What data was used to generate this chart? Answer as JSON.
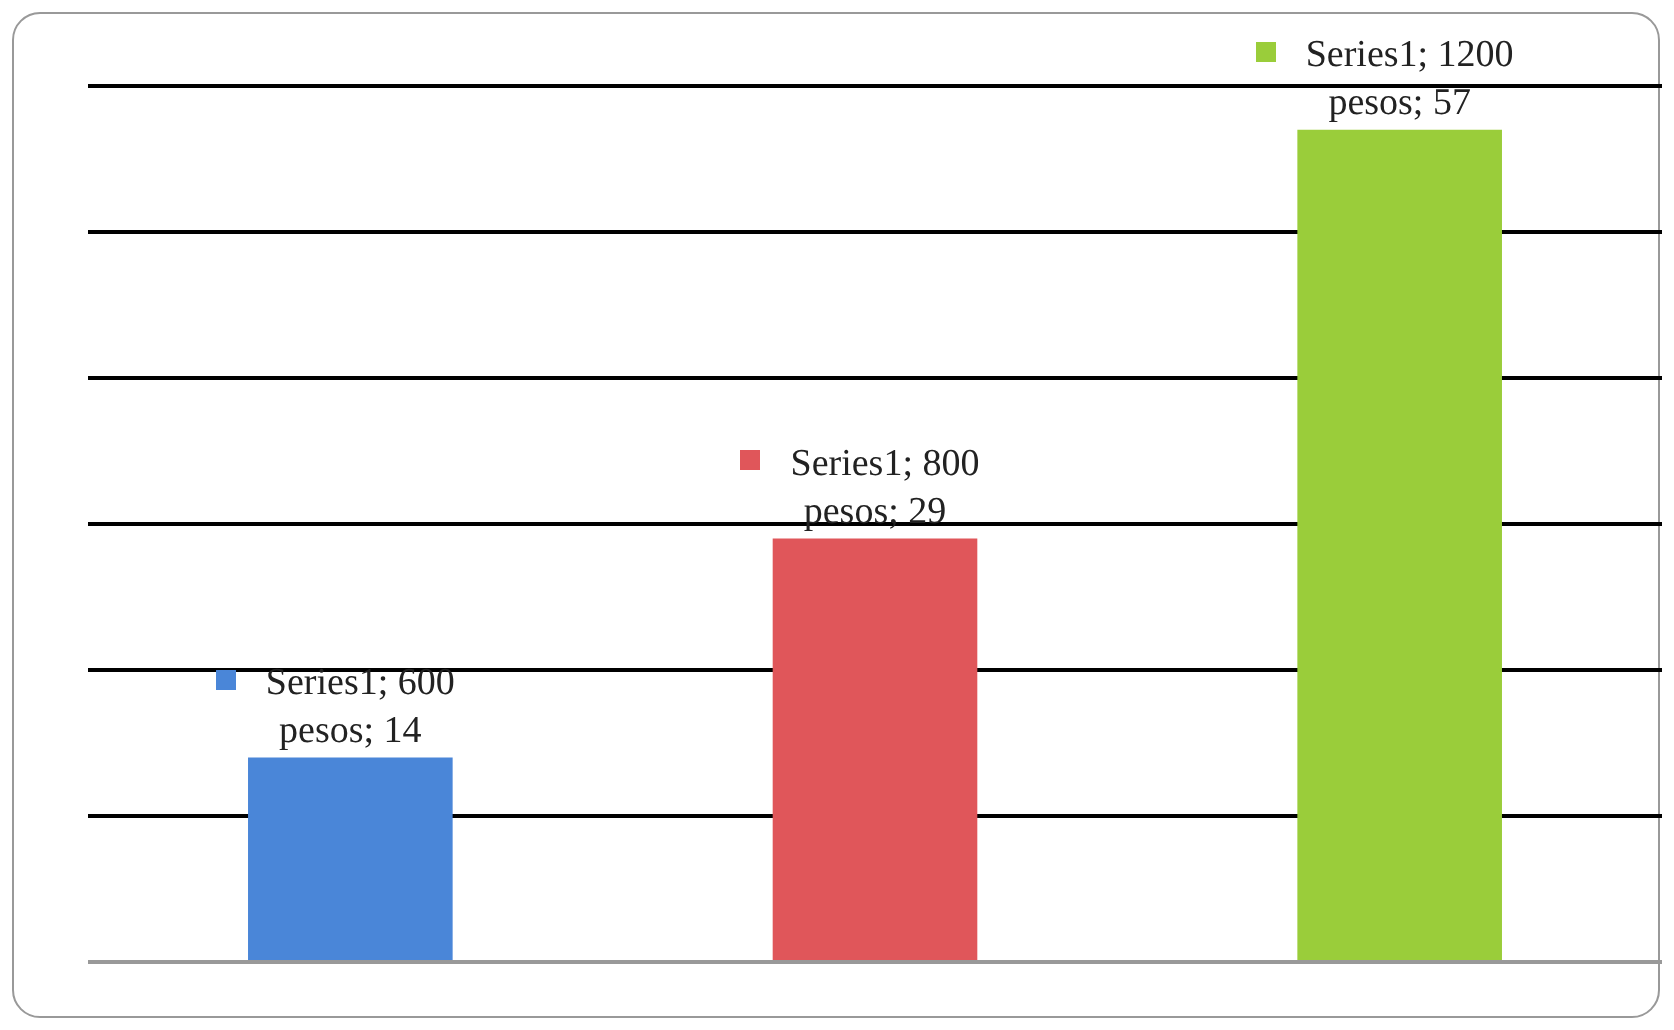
{
  "chart_data": {
    "type": "bar",
    "categories": [
      null,
      null,
      null
    ],
    "series": [
      {
        "colors": [
          "#4a86d8",
          "#e0565a",
          "#9acd3a"
        ],
        "values": [
          14,
          29,
          57
        ],
        "value_labels": [
          "Series1; 600 pesos; 14",
          "Series1; 800 pesos; 29",
          "Series1; 1200 pesos; 57"
        ]
      }
    ],
    "ylim": [
      0,
      60
    ],
    "yticks": [
      0,
      10,
      20,
      30,
      40,
      50,
      60
    ],
    "grid": "y",
    "tick_labels": false,
    "legend": false
  }
}
